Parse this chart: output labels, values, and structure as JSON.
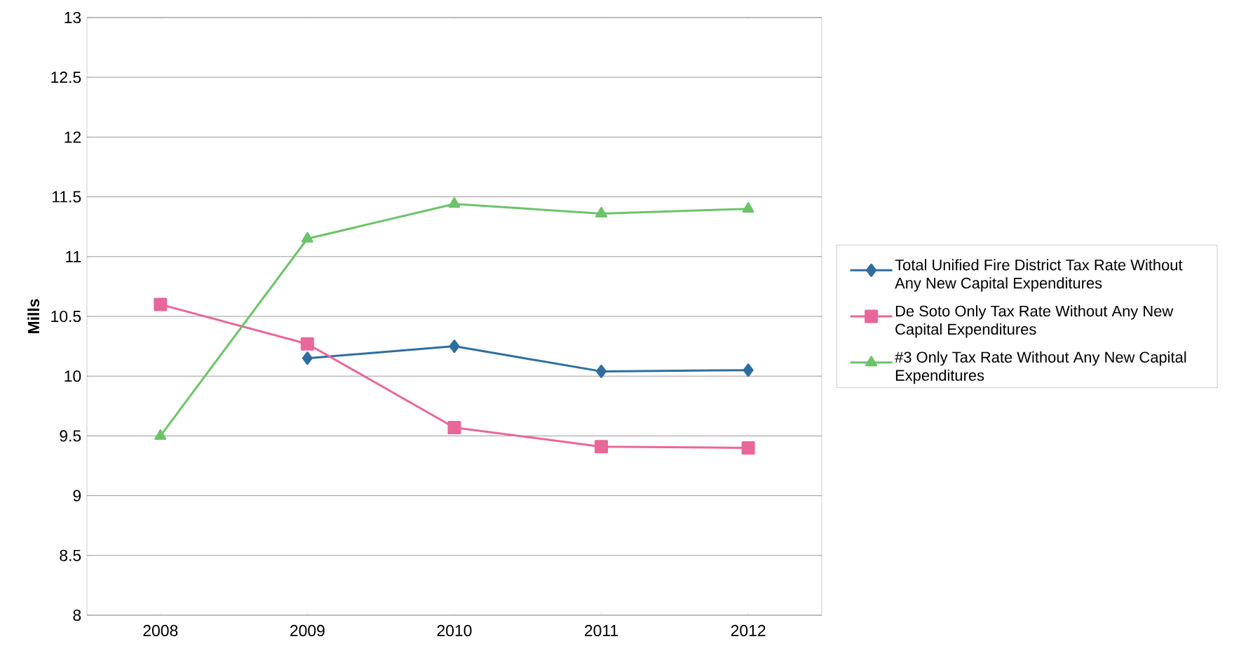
{
  "chart_data": {
    "type": "line",
    "ylabel": "Mills",
    "categories": [
      "2008",
      "2009",
      "2010",
      "2011",
      "2012"
    ],
    "series": [
      {
        "name": "Total Unified Fire District Tax Rate Without Any New Capital Expenditures",
        "color": "#2e6e9e",
        "marker": "diamond",
        "values": [
          null,
          10.15,
          10.25,
          10.04,
          10.05
        ]
      },
      {
        "name": "De Soto Only Tax Rate Without Any New Capital Expenditures",
        "color": "#e8679a",
        "marker": "square",
        "values": [
          10.6,
          10.27,
          9.57,
          9.41,
          9.4
        ]
      },
      {
        "name": "#3 Only Tax Rate Without Any New Capital Expenditures",
        "color": "#6cc36a",
        "marker": "triangle",
        "values": [
          9.5,
          11.15,
          11.44,
          11.36,
          11.4
        ]
      }
    ],
    "ylim": [
      8,
      13
    ],
    "yticks": [
      8,
      8.5,
      9,
      9.5,
      10,
      10.5,
      11,
      11.5,
      12,
      12.5,
      13
    ],
    "grid": "y",
    "legend": "right",
    "line_style": "solid"
  }
}
